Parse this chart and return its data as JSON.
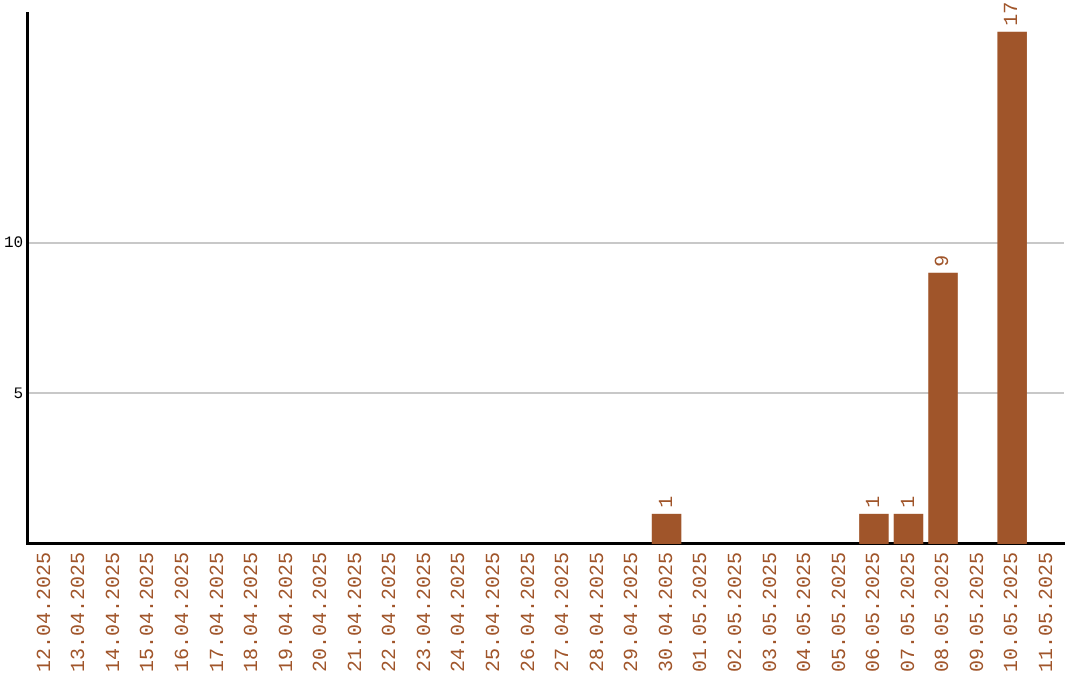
{
  "chart_data": {
    "type": "bar",
    "categories": [
      "12.04.2025",
      "13.04.2025",
      "14.04.2025",
      "15.04.2025",
      "16.04.2025",
      "17.04.2025",
      "18.04.2025",
      "19.04.2025",
      "20.04.2025",
      "21.04.2025",
      "22.04.2025",
      "23.04.2025",
      "24.04.2025",
      "25.04.2025",
      "26.04.2025",
      "27.04.2025",
      "28.04.2025",
      "29.04.2025",
      "30.04.2025",
      "01.05.2025",
      "02.05.2025",
      "03.05.2025",
      "04.05.2025",
      "05.05.2025",
      "06.05.2025",
      "07.05.2025",
      "08.05.2025",
      "09.05.2025",
      "10.05.2025",
      "11.05.2025"
    ],
    "values": [
      0,
      0,
      0,
      0,
      0,
      0,
      0,
      0,
      0,
      0,
      0,
      0,
      0,
      0,
      0,
      0,
      0,
      0,
      1,
      0,
      0,
      0,
      0,
      0,
      1,
      1,
      9,
      0,
      17,
      0
    ],
    "value_labels": [
      null,
      null,
      null,
      null,
      null,
      null,
      null,
      null,
      null,
      null,
      null,
      null,
      null,
      null,
      null,
      null,
      null,
      null,
      "1",
      null,
      null,
      null,
      null,
      null,
      "1",
      "1",
      "9",
      null,
      "17",
      null
    ],
    "color": "#a0552a",
    "ylim": [
      0,
      17.6
    ],
    "yticks": [
      5,
      10
    ],
    "grid": "y",
    "legend": false
  }
}
